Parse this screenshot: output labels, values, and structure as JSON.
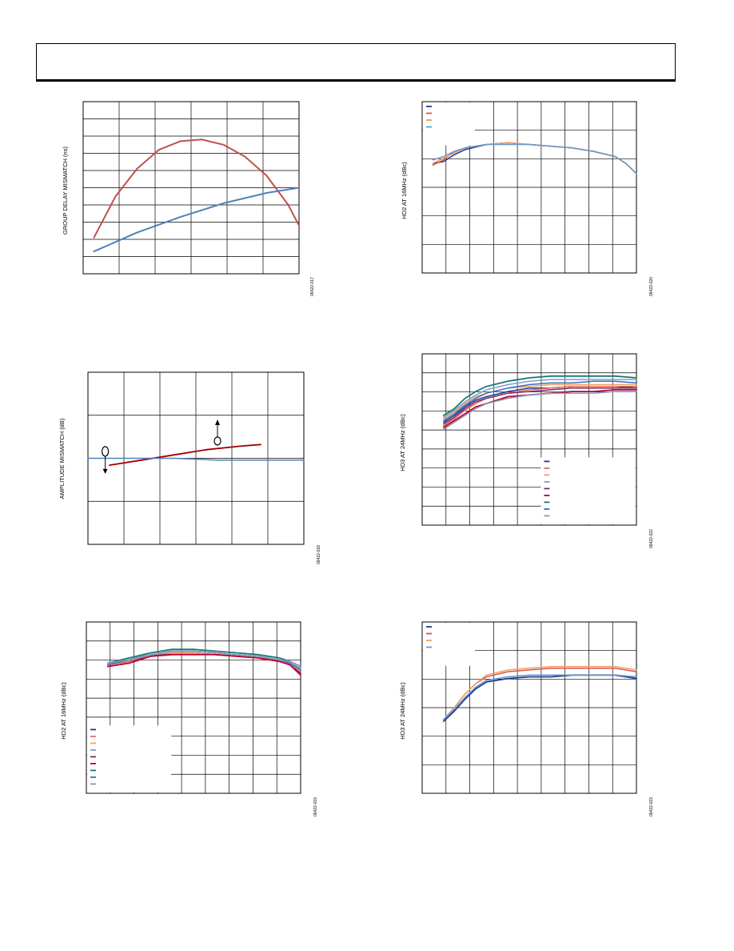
{
  "chart_data": [
    {
      "type": "line",
      "ylabel": "GROUP DELAY MISMATCH (ns)",
      "code": "09422-017",
      "xlim": [
        0,
        100
      ],
      "ylim": [
        0,
        100
      ],
      "grid": {
        "cols": 6,
        "rows": 10
      },
      "legend": false,
      "series": [
        {
          "color": "#c0504d",
          "width": 2,
          "x": [
            5,
            15,
            25,
            35,
            45,
            55,
            65,
            75,
            85,
            95,
            100
          ],
          "y": [
            21,
            45,
            61,
            72,
            77,
            78,
            75,
            68,
            57,
            40,
            28
          ]
        },
        {
          "color": "#4f81bd",
          "width": 2,
          "x": [
            5,
            25,
            45,
            65,
            85,
            100
          ],
          "y": [
            13,
            24,
            33,
            41,
            47,
            50
          ]
        }
      ]
    },
    {
      "type": "line",
      "ylabel": "HD2 AT 16MHz (dBc)",
      "code": "09422-020",
      "xlim": [
        0,
        100
      ],
      "ylim": [
        0,
        100
      ],
      "grid": {
        "cols": 9,
        "rows": 6
      },
      "legend": true,
      "legend_box": [
        0,
        74,
        25,
        100
      ],
      "legend_colors": [
        "#1f3a93",
        "#d9534f",
        "#f0a060",
        "#6699cc"
      ],
      "series": [
        {
          "color": "#1f3a93",
          "width": 1.5,
          "x": [
            5,
            10,
            15,
            20,
            30,
            40,
            50,
            60,
            70,
            80,
            90,
            95,
            100
          ],
          "y": [
            64,
            65,
            69,
            72,
            75,
            76,
            75,
            74,
            73,
            71,
            68,
            64,
            58
          ]
        },
        {
          "color": "#d9534f",
          "width": 1.5,
          "x": [
            5,
            10,
            15,
            20,
            30,
            40,
            50,
            60,
            70,
            80,
            90,
            95,
            100
          ],
          "y": [
            63,
            66,
            71,
            73,
            75,
            76,
            75,
            74,
            73,
            71,
            68,
            64,
            58
          ]
        },
        {
          "color": "#f0a060",
          "width": 1.5,
          "x": [
            5,
            10,
            15,
            20,
            30,
            40,
            50,
            60,
            70,
            80,
            90,
            95,
            100
          ],
          "y": [
            64,
            67,
            70,
            73,
            75,
            76,
            75,
            74,
            73,
            71,
            68,
            64,
            58
          ]
        },
        {
          "color": "#6699cc",
          "width": 1.5,
          "x": [
            5,
            10,
            15,
            20,
            30,
            40,
            50,
            60,
            70,
            80,
            90,
            95,
            100
          ],
          "y": [
            66,
            68,
            71,
            73,
            75,
            75,
            75,
            74,
            73,
            71,
            68,
            64,
            58
          ]
        }
      ]
    },
    {
      "type": "line",
      "ylabel": "AMPLITUDE MISMATCH (dB)",
      "code": "09422-018",
      "xlim": [
        0,
        100
      ],
      "ylim": [
        0,
        100
      ],
      "grid": {
        "cols": 6,
        "rows": 4
      },
      "legend": false,
      "annotations": {
        "left_marker": [
          8,
          54
        ],
        "right_marker": [
          60,
          60
        ]
      },
      "series": [
        {
          "color": "#a00000",
          "width": 1.8,
          "x": [
            10,
            25,
            40,
            55,
            70,
            80
          ],
          "y": [
            46,
            49,
            52,
            55,
            57,
            58
          ]
        },
        {
          "color": "#4f81bd",
          "width": 1.5,
          "x": [
            0,
            20,
            40,
            60,
            80,
            100
          ],
          "y": [
            50,
            50,
            50,
            49,
            49,
            49
          ]
        }
      ]
    },
    {
      "type": "line",
      "ylabel": "HD3 AT 24MHz (dBc)",
      "code": "09422-022",
      "xlim": [
        0,
        100
      ],
      "ylim": [
        0,
        100
      ],
      "grid": {
        "cols": 9,
        "rows": 9
      },
      "legend": true,
      "legend_box": [
        55,
        0,
        100,
        40
      ],
      "legend_colors": [
        "#1f3a93",
        "#e07060",
        "#f0a060",
        "#7aa0cc",
        "#7b2d6b",
        "#c0002a",
        "#1a7a7a",
        "#3a6ec0",
        "#8899bb"
      ],
      "series": [
        {
          "color": "#1f3a93",
          "width": 1.5,
          "x": [
            10,
            15,
            20,
            25,
            30,
            40,
            50,
            60,
            70,
            80,
            90,
            100
          ],
          "y": [
            60,
            64,
            69,
            73,
            75,
            78,
            80,
            80,
            81,
            81,
            81,
            80
          ]
        },
        {
          "color": "#e07060",
          "width": 1.5,
          "x": [
            10,
            15,
            20,
            25,
            30,
            40,
            50,
            60,
            70,
            80,
            90,
            100
          ],
          "y": [
            58,
            62,
            67,
            71,
            74,
            77,
            79,
            80,
            81,
            81,
            81,
            81
          ]
        },
        {
          "color": "#f0a060",
          "width": 1.5,
          "x": [
            10,
            15,
            20,
            25,
            30,
            40,
            50,
            60,
            70,
            80,
            90,
            100
          ],
          "y": [
            62,
            66,
            71,
            75,
            77,
            80,
            81,
            82,
            82,
            82,
            82,
            82
          ]
        },
        {
          "color": "#7aa0cc",
          "width": 1.5,
          "x": [
            10,
            15,
            20,
            25,
            30,
            40,
            50,
            60,
            70,
            80,
            90,
            100
          ],
          "y": [
            63,
            67,
            72,
            76,
            79,
            82,
            84,
            85,
            85,
            85,
            85,
            85
          ]
        },
        {
          "color": "#7b2d6b",
          "width": 1.5,
          "x": [
            10,
            15,
            20,
            25,
            30,
            40,
            50,
            60,
            70,
            80,
            90,
            100
          ],
          "y": [
            59,
            63,
            68,
            72,
            74,
            77,
            78,
            79,
            80,
            80,
            80,
            80
          ]
        },
        {
          "color": "#c0002a",
          "width": 1.8,
          "x": [
            10,
            15,
            20,
            25,
            30,
            40,
            50,
            60,
            70,
            80,
            90,
            100
          ],
          "y": [
            57,
            61,
            65,
            69,
            71,
            75,
            76,
            77,
            78,
            78,
            79,
            79
          ]
        },
        {
          "color": "#1a7a7a",
          "width": 1.8,
          "x": [
            10,
            15,
            20,
            25,
            30,
            40,
            50,
            60,
            70,
            80,
            90,
            100
          ],
          "y": [
            64,
            68,
            74,
            78,
            81,
            84,
            86,
            87,
            87,
            87,
            87,
            86
          ]
        },
        {
          "color": "#3a6ec0",
          "width": 1.5,
          "x": [
            10,
            15,
            20,
            25,
            30,
            40,
            50,
            60,
            70,
            80,
            90,
            100
          ],
          "y": [
            61,
            65,
            70,
            74,
            77,
            80,
            82,
            83,
            83,
            84,
            84,
            83
          ]
        },
        {
          "color": "#8899bb",
          "width": 1.5,
          "x": [
            10,
            15,
            20,
            25,
            30,
            40,
            50,
            60,
            70,
            80,
            90,
            100
          ],
          "y": [
            56,
            60,
            64,
            68,
            71,
            74,
            76,
            77,
            77,
            77,
            78,
            78
          ]
        }
      ]
    },
    {
      "type": "line",
      "ylabel": "HD2 AT 16MHz (dBc)",
      "code": "09422-019",
      "xlim": [
        0,
        100
      ],
      "ylim": [
        0,
        100
      ],
      "grid": {
        "cols": 9,
        "rows": 9
      },
      "legend": true,
      "legend_box": [
        0,
        0,
        40,
        40
      ],
      "legend_colors": [
        "#1f3a93",
        "#e07060",
        "#f0a060",
        "#7aa0cc",
        "#7b2d6b",
        "#c0002a",
        "#1a7a7a",
        "#3a6ec0",
        "#8899bb"
      ],
      "series": [
        {
          "color": "#1f3a93",
          "width": 1.5,
          "x": [
            10,
            20,
            30,
            40,
            50,
            60,
            70,
            80,
            90,
            95,
            100
          ],
          "y": [
            75,
            77,
            80,
            82,
            82,
            81,
            80,
            79,
            77,
            75,
            70
          ]
        },
        {
          "color": "#e07060",
          "width": 1.5,
          "x": [
            10,
            20,
            30,
            40,
            50,
            60,
            70,
            80,
            90,
            95,
            100
          ],
          "y": [
            75,
            77,
            81,
            82,
            82,
            81,
            80,
            79,
            77,
            75,
            71
          ]
        },
        {
          "color": "#f0a060",
          "width": 1.5,
          "x": [
            10,
            20,
            30,
            40,
            50,
            60,
            70,
            80,
            90,
            95,
            100
          ],
          "y": [
            76,
            78,
            81,
            82,
            82,
            81,
            80,
            79,
            78,
            76,
            72
          ]
        },
        {
          "color": "#7aa0cc",
          "width": 1.5,
          "x": [
            10,
            20,
            30,
            40,
            50,
            60,
            70,
            80,
            90,
            95,
            100
          ],
          "y": [
            76,
            79,
            81,
            83,
            83,
            82,
            81,
            80,
            78,
            76,
            73
          ]
        },
        {
          "color": "#7b2d6b",
          "width": 1.5,
          "x": [
            10,
            20,
            30,
            40,
            50,
            60,
            70,
            80,
            90,
            95,
            100
          ],
          "y": [
            74,
            76,
            80,
            81,
            81,
            81,
            80,
            79,
            77,
            75,
            70
          ]
        },
        {
          "color": "#c0002a",
          "width": 1.8,
          "x": [
            10,
            15,
            20,
            25,
            30,
            40,
            50,
            60,
            70,
            80,
            90,
            95,
            100
          ],
          "y": [
            74,
            75,
            76,
            78,
            80,
            81,
            81,
            81,
            80,
            79,
            77,
            75,
            69
          ]
        },
        {
          "color": "#1a7a7a",
          "width": 1.8,
          "x": [
            10,
            20,
            30,
            40,
            50,
            60,
            70,
            80,
            90,
            95,
            100
          ],
          "y": [
            76,
            79,
            82,
            84,
            84,
            83,
            82,
            81,
            79,
            77,
            74
          ]
        },
        {
          "color": "#3a6ec0",
          "width": 1.5,
          "x": [
            10,
            20,
            30,
            40,
            50,
            60,
            70,
            80,
            90,
            95,
            100
          ],
          "y": [
            75,
            78,
            81,
            83,
            83,
            82,
            81,
            80,
            78,
            76,
            72
          ]
        },
        {
          "color": "#8899bb",
          "width": 1.5,
          "x": [
            10,
            20,
            30,
            40,
            50,
            60,
            70,
            80,
            90,
            95,
            100
          ],
          "y": [
            76,
            78,
            81,
            83,
            83,
            82,
            81,
            80,
            78,
            77,
            74
          ]
        }
      ]
    },
    {
      "type": "line",
      "ylabel": "HD3 AT 24MHz (dBc)",
      "code": "09422-023",
      "xlim": [
        0,
        100
      ],
      "ylim": [
        0,
        100
      ],
      "grid": {
        "cols": 9,
        "rows": 6
      },
      "legend": true,
      "legend_box": [
        0,
        74,
        25,
        100
      ],
      "legend_colors": [
        "#1f3a93",
        "#d9534f",
        "#f0a060",
        "#6699cc"
      ],
      "series": [
        {
          "color": "#1f3a93",
          "width": 1.8,
          "x": [
            10,
            15,
            20,
            25,
            30,
            40,
            50,
            60,
            70,
            80,
            90,
            100
          ],
          "y": [
            42,
            48,
            55,
            61,
            65,
            67,
            68,
            68,
            69,
            69,
            69,
            67
          ]
        },
        {
          "color": "#d9534f",
          "width": 1.5,
          "x": [
            10,
            15,
            20,
            25,
            30,
            40,
            50,
            60,
            70,
            80,
            90,
            100
          ],
          "y": [
            43,
            50,
            58,
            64,
            68,
            71,
            72,
            73,
            73,
            73,
            73,
            71
          ]
        },
        {
          "color": "#f0a060",
          "width": 1.5,
          "x": [
            10,
            15,
            20,
            25,
            30,
            40,
            50,
            60,
            70,
            80,
            90,
            100
          ],
          "y": [
            43,
            50,
            58,
            64,
            69,
            72,
            73,
            74,
            74,
            74,
            74,
            72
          ]
        },
        {
          "color": "#6699cc",
          "width": 1.5,
          "x": [
            10,
            15,
            20,
            25,
            30,
            40,
            50,
            60,
            70,
            80,
            90,
            100
          ],
          "y": [
            43,
            49,
            56,
            62,
            66,
            68,
            69,
            69,
            69,
            69,
            69,
            68
          ]
        }
      ]
    }
  ]
}
